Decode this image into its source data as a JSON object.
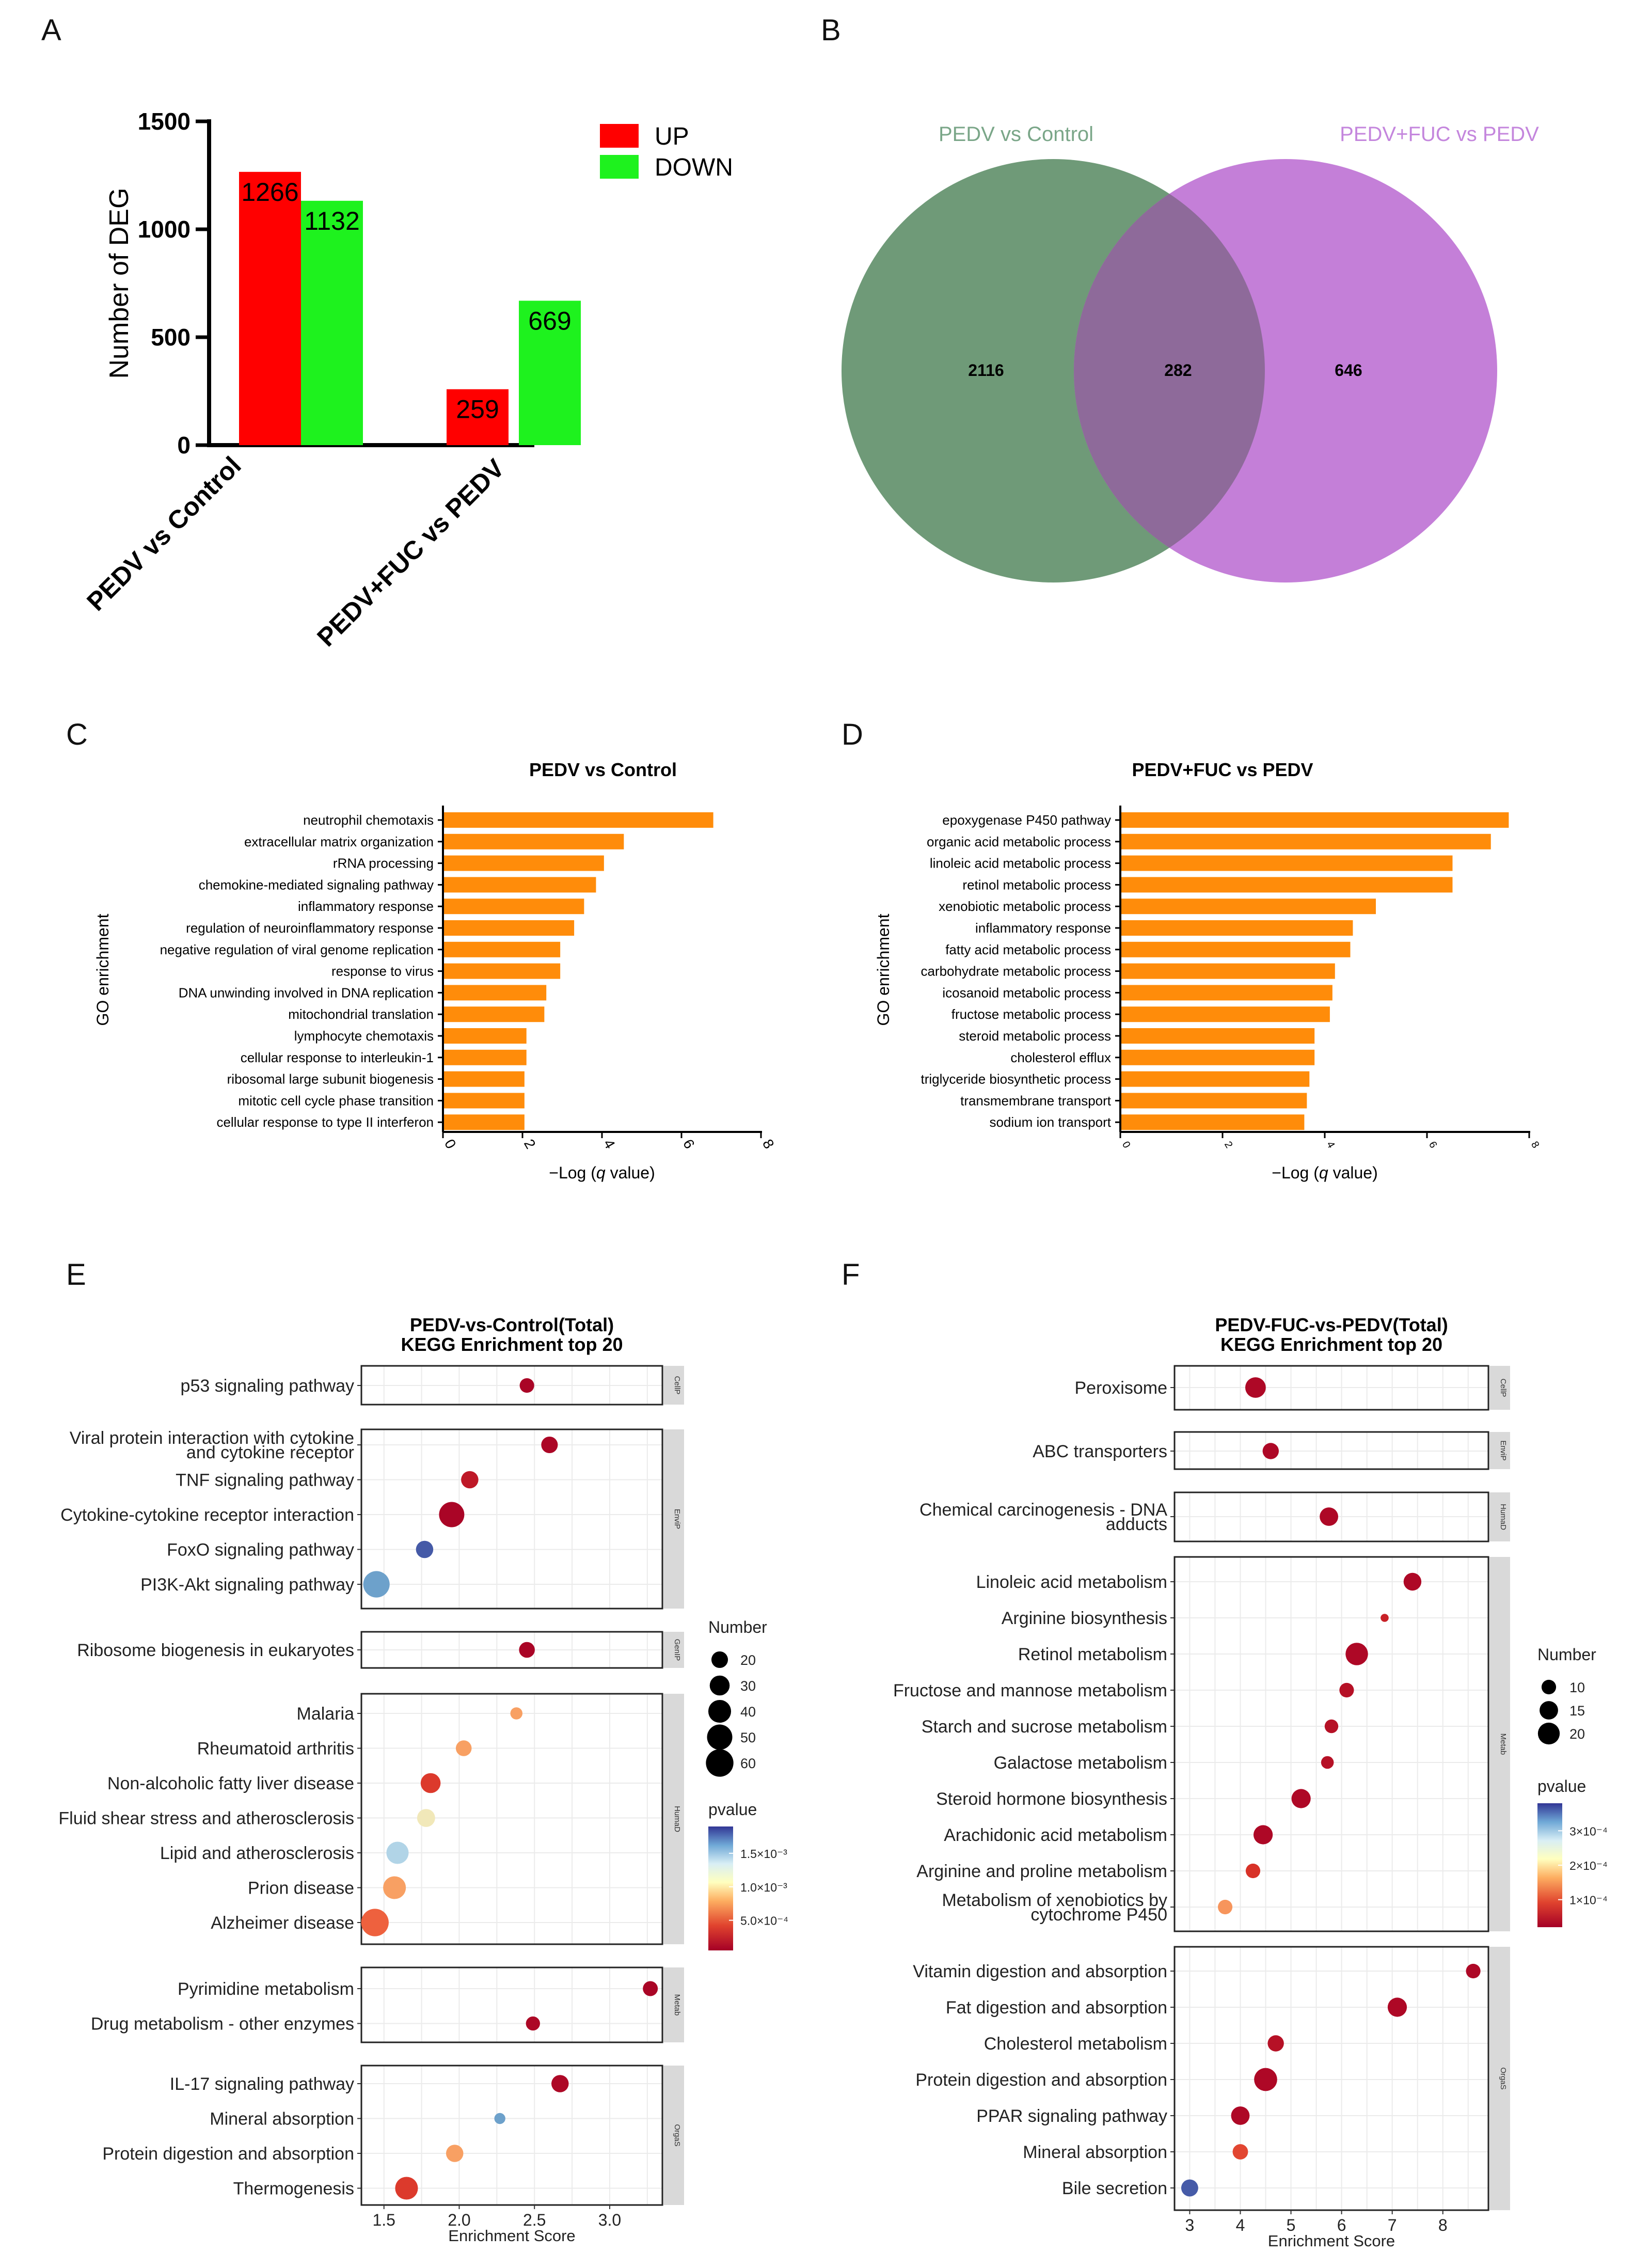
{
  "panel_labels": {
    "A": "A",
    "B": "B",
    "C": "C",
    "D": "D",
    "E": "E",
    "F": "F"
  },
  "colors": {
    "up": "#ff0000",
    "down": "#1ef21e",
    "orange": "#ff8c0a",
    "venn_left": "#6f9a78",
    "venn_right": "#c47fd8",
    "venn_overlap": "#8e6a9a",
    "pathway_left_label": "#7aa688",
    "pathway_right_label": "#c486dd"
  },
  "chart_data": [
    {
      "id": "A",
      "type": "bar",
      "ylabel": "Number of DEG",
      "ylim": [
        0,
        1500
      ],
      "yticks": [
        0,
        500,
        1000,
        1500
      ],
      "categories": [
        "PEDV vs Control",
        "PEDV+FUC vs PEDV"
      ],
      "series": [
        {
          "name": "UP",
          "color": "#ff0000",
          "values": [
            1266,
            259
          ]
        },
        {
          "name": "DOWN",
          "color": "#1ef21e",
          "values": [
            1132,
            669
          ]
        }
      ],
      "legend": [
        "UP",
        "DOWN"
      ]
    },
    {
      "id": "B",
      "type": "venn",
      "sets": [
        "PEDV vs Control",
        "PEDV+FUC vs PEDV"
      ],
      "values": {
        "left_only": 2116,
        "overlap": 282,
        "right_only": 646
      }
    },
    {
      "id": "C",
      "type": "bar",
      "orientation": "horizontal",
      "title": "PEDV  vs Control",
      "ylabel": "GO enrichment",
      "xlabel_pre": "−Log (",
      "xlabel_q": "q",
      "xlabel_post": " value)",
      "xlim": [
        0,
        8
      ],
      "xticks": [
        0,
        2,
        4,
        6,
        8
      ],
      "categories": [
        "neutrophil chemotaxis",
        "extracellular matrix organization",
        "rRNA processing",
        "chemokine-mediated signaling pathway",
        "inflammatory response",
        "regulation of neuroinflammatory response",
        "negative regulation of viral genome replication",
        "response to virus",
        "DNA unwinding involved in DNA replication",
        "mitochondrial translation",
        "lymphocyte chemotaxis",
        "cellular response to interleukin-1",
        "ribosomal large subunit biogenesis",
        "mitotic cell cycle phase transition",
        "cellular response to type II interferon"
      ],
      "values": [
        6.8,
        4.55,
        4.05,
        3.85,
        3.55,
        3.3,
        2.95,
        2.95,
        2.6,
        2.55,
        2.1,
        2.1,
        2.05,
        2.05,
        2.05
      ]
    },
    {
      "id": "D",
      "type": "bar",
      "orientation": "horizontal",
      "title": "PEDV+FUC  vs PEDV",
      "ylabel": "GO enrichment",
      "xlabel_pre": "−Log (",
      "xlabel_q": "q",
      "xlabel_post": " value)",
      "xlim": [
        0,
        8
      ],
      "xticks": [
        0,
        2,
        4,
        6,
        8
      ],
      "categories": [
        "epoxygenase P450 pathway",
        "organic acid metabolic process",
        "linoleic acid metabolic process",
        "retinol metabolic process",
        "xenobiotic metabolic process",
        "inflammatory response",
        "fatty acid metabolic process",
        "carbohydrate metabolic process",
        "icosanoid metabolic process",
        "fructose metabolic process",
        "steroid metabolic process",
        "cholesterol efflux",
        "triglyceride biosynthetic process",
        "transmembrane transport",
        "sodium ion transport"
      ],
      "values": [
        7.6,
        7.25,
        6.5,
        6.5,
        5.0,
        4.55,
        4.5,
        4.2,
        4.15,
        4.1,
        3.8,
        3.8,
        3.7,
        3.65,
        3.6
      ]
    },
    {
      "id": "E",
      "type": "scatter",
      "title": [
        "PEDV-vs-Control(Total)",
        "KEGG Enrichment top 20"
      ],
      "xlabel": "Enrichment Score",
      "xlim": [
        1.35,
        3.35
      ],
      "xticks": [
        1.5,
        2.0,
        2.5,
        3.0
      ],
      "xtick_labels": [
        "1.5",
        "2.0",
        "2.5",
        "3.0"
      ],
      "groups": [
        {
          "strip": "CellP",
          "items": [
            {
              "label": [
                "p53 signaling pathway"
              ],
              "x": 2.45,
              "n": 15,
              "p": 8e-05
            }
          ]
        },
        {
          "strip": "EnviP",
          "items": [
            {
              "label": [
                "Viral protein interaction with cytokine",
                "and cytokine receptor"
              ],
              "x": 2.6,
              "n": 20,
              "p": 9e-05
            },
            {
              "label": [
                "TNF signaling pathway"
              ],
              "x": 2.07,
              "n": 22,
              "p": 0.0002
            },
            {
              "label": [
                "Cytokine-cytokine receptor interaction"
              ],
              "x": 1.95,
              "n": 50,
              "p": 8e-05
            },
            {
              "label": [
                "FoxO signaling pathway"
              ],
              "x": 1.77,
              "n": 22,
              "p": 0.0018
            },
            {
              "label": [
                "PI3K-Akt signaling pathway"
              ],
              "x": 1.45,
              "n": 55,
              "p": 0.0016
            }
          ]
        },
        {
          "strip": "GenIP",
          "items": [
            {
              "label": [
                "Ribosome biogenesis in eukaryotes"
              ],
              "x": 2.45,
              "n": 18,
              "p": 8e-05
            }
          ]
        },
        {
          "strip": "HumaD",
          "items": [
            {
              "label": [
                "Malaria"
              ],
              "x": 2.38,
              "n": 10,
              "p": 0.0008
            },
            {
              "label": [
                "Rheumatoid arthritis"
              ],
              "x": 2.03,
              "n": 18,
              "p": 0.0008
            },
            {
              "label": [
                "Non-alcoholic fatty liver disease"
              ],
              "x": 1.81,
              "n": 30,
              "p": 0.0004
            },
            {
              "label": [
                "Fluid shear stress and atherosclerosis"
              ],
              "x": 1.78,
              "n": 24,
              "p": 0.0011
            },
            {
              "label": [
                "Lipid and atherosclerosis"
              ],
              "x": 1.59,
              "n": 38,
              "p": 0.0014
            },
            {
              "label": [
                "Prion disease"
              ],
              "x": 1.57,
              "n": 40,
              "p": 0.0008
            },
            {
              "label": [
                "Alzheimer disease"
              ],
              "x": 1.44,
              "n": 60,
              "p": 0.0006
            }
          ]
        },
        {
          "strip": "Metab",
          "items": [
            {
              "label": [
                "Pyrimidine metabolism"
              ],
              "x": 3.27,
              "n": 16,
              "p": 8e-05
            },
            {
              "label": [
                "Drug metabolism - other enzymes"
              ],
              "x": 2.49,
              "n": 14,
              "p": 0.0001
            }
          ]
        },
        {
          "strip": "OrgaS",
          "items": [
            {
              "label": [
                "IL-17 signaling pathway"
              ],
              "x": 2.67,
              "n": 22,
              "p": 0.0001
            },
            {
              "label": [
                "Mineral absorption"
              ],
              "x": 2.27,
              "n": 8,
              "p": 0.0016
            },
            {
              "label": [
                "Protein digestion and absorption"
              ],
              "x": 1.97,
              "n": 22,
              "p": 0.0008
            },
            {
              "label": [
                "Thermogenesis"
              ],
              "x": 1.65,
              "n": 40,
              "p": 0.0004
            }
          ]
        }
      ],
      "size_legend": {
        "title": "Number",
        "values": [
          20,
          30,
          40,
          50,
          60
        ]
      },
      "color_legend": {
        "title": "pvalue",
        "labels": [
          "1.5×10⁻³",
          "1.0×10⁻³",
          "5.0×10⁻⁴"
        ],
        "label_values": [
          0.0015,
          0.001,
          0.0005
        ],
        "range": [
          5e-05,
          0.0019
        ]
      }
    },
    {
      "id": "F",
      "type": "scatter",
      "title": [
        "PEDV-FUC-vs-PEDV(Total)",
        "KEGG Enrichment top 20"
      ],
      "xlabel": "Enrichment Score",
      "xlim": [
        2.7,
        8.9
      ],
      "xticks": [
        3,
        4,
        5,
        6,
        7,
        8
      ],
      "xtick_labels": [
        "3",
        "4",
        "5",
        "6",
        "7",
        "8"
      ],
      "groups": [
        {
          "strip": "CellP",
          "items": [
            {
              "label": [
                "Peroxisome"
              ],
              "x": 4.3,
              "n": 18,
              "p": 3e-05
            }
          ]
        },
        {
          "strip": "EnviP",
          "items": [
            {
              "label": [
                "ABC transporters"
              ],
              "x": 4.6,
              "n": 12,
              "p": 3e-05
            }
          ]
        },
        {
          "strip": "HumaD",
          "items": [
            {
              "label": [
                "Chemical carcinogenesis - DNA",
                "adducts"
              ],
              "x": 5.75,
              "n": 15,
              "p": 3e-05
            }
          ]
        },
        {
          "strip": "Metab",
          "items": [
            {
              "label": [
                "Linoleic acid metabolism"
              ],
              "x": 7.4,
              "n": 14,
              "p": 3e-05
            },
            {
              "label": [
                "Arginine biosynthesis"
              ],
              "x": 6.85,
              "n": 4,
              "p": 6e-05
            },
            {
              "label": [
                "Retinol metabolism"
              ],
              "x": 6.3,
              "n": 21,
              "p": 3e-05
            },
            {
              "label": [
                "Fructose and mannose metabolism"
              ],
              "x": 6.1,
              "n": 10,
              "p": 4e-05
            },
            {
              "label": [
                "Starch and sucrose metabolism"
              ],
              "x": 5.8,
              "n": 9,
              "p": 4e-05
            },
            {
              "label": [
                "Galactose metabolism"
              ],
              "x": 5.72,
              "n": 8,
              "p": 4e-05
            },
            {
              "label": [
                "Steroid hormone biosynthesis"
              ],
              "x": 5.2,
              "n": 16,
              "p": 3e-05
            },
            {
              "label": [
                "Arachidonic acid metabolism"
              ],
              "x": 4.45,
              "n": 16,
              "p": 3e-05
            },
            {
              "label": [
                "Arginine and proline metabolism"
              ],
              "x": 4.25,
              "n": 10,
              "p": 8e-05
            },
            {
              "label": [
                "Metabolism of xenobiotics by",
                "cytochrome P450"
              ],
              "x": 3.7,
              "n": 10,
              "p": 0.00016
            }
          ]
        },
        {
          "strip": "OrgaS",
          "items": [
            {
              "label": [
                "Vitamin digestion and absorption"
              ],
              "x": 8.6,
              "n": 10,
              "p": 3e-05
            },
            {
              "label": [
                "Fat digestion and absorption"
              ],
              "x": 7.1,
              "n": 16,
              "p": 3e-05
            },
            {
              "label": [
                "Cholesterol metabolism"
              ],
              "x": 4.7,
              "n": 12,
              "p": 4e-05
            },
            {
              "label": [
                "Protein digestion and absorption"
              ],
              "x": 4.5,
              "n": 22,
              "p": 3e-05
            },
            {
              "label": [
                "PPAR signaling pathway"
              ],
              "x": 4.0,
              "n": 15,
              "p": 3e-05
            },
            {
              "label": [
                "Mineral absorption"
              ],
              "x": 4.0,
              "n": 11,
              "p": 0.0001
            },
            {
              "label": [
                "Bile secretion"
              ],
              "x": 3.0,
              "n": 13,
              "p": 0.00036
            }
          ]
        }
      ],
      "size_legend": {
        "title": "Number",
        "values": [
          10,
          15,
          20
        ]
      },
      "color_legend": {
        "title": "pvalue",
        "labels": [
          "3×10⁻⁴",
          "2×10⁻⁴",
          "1×10⁻⁴"
        ],
        "label_values": [
          0.0003,
          0.0002,
          0.0001
        ],
        "range": [
          2e-05,
          0.00038
        ]
      }
    }
  ]
}
